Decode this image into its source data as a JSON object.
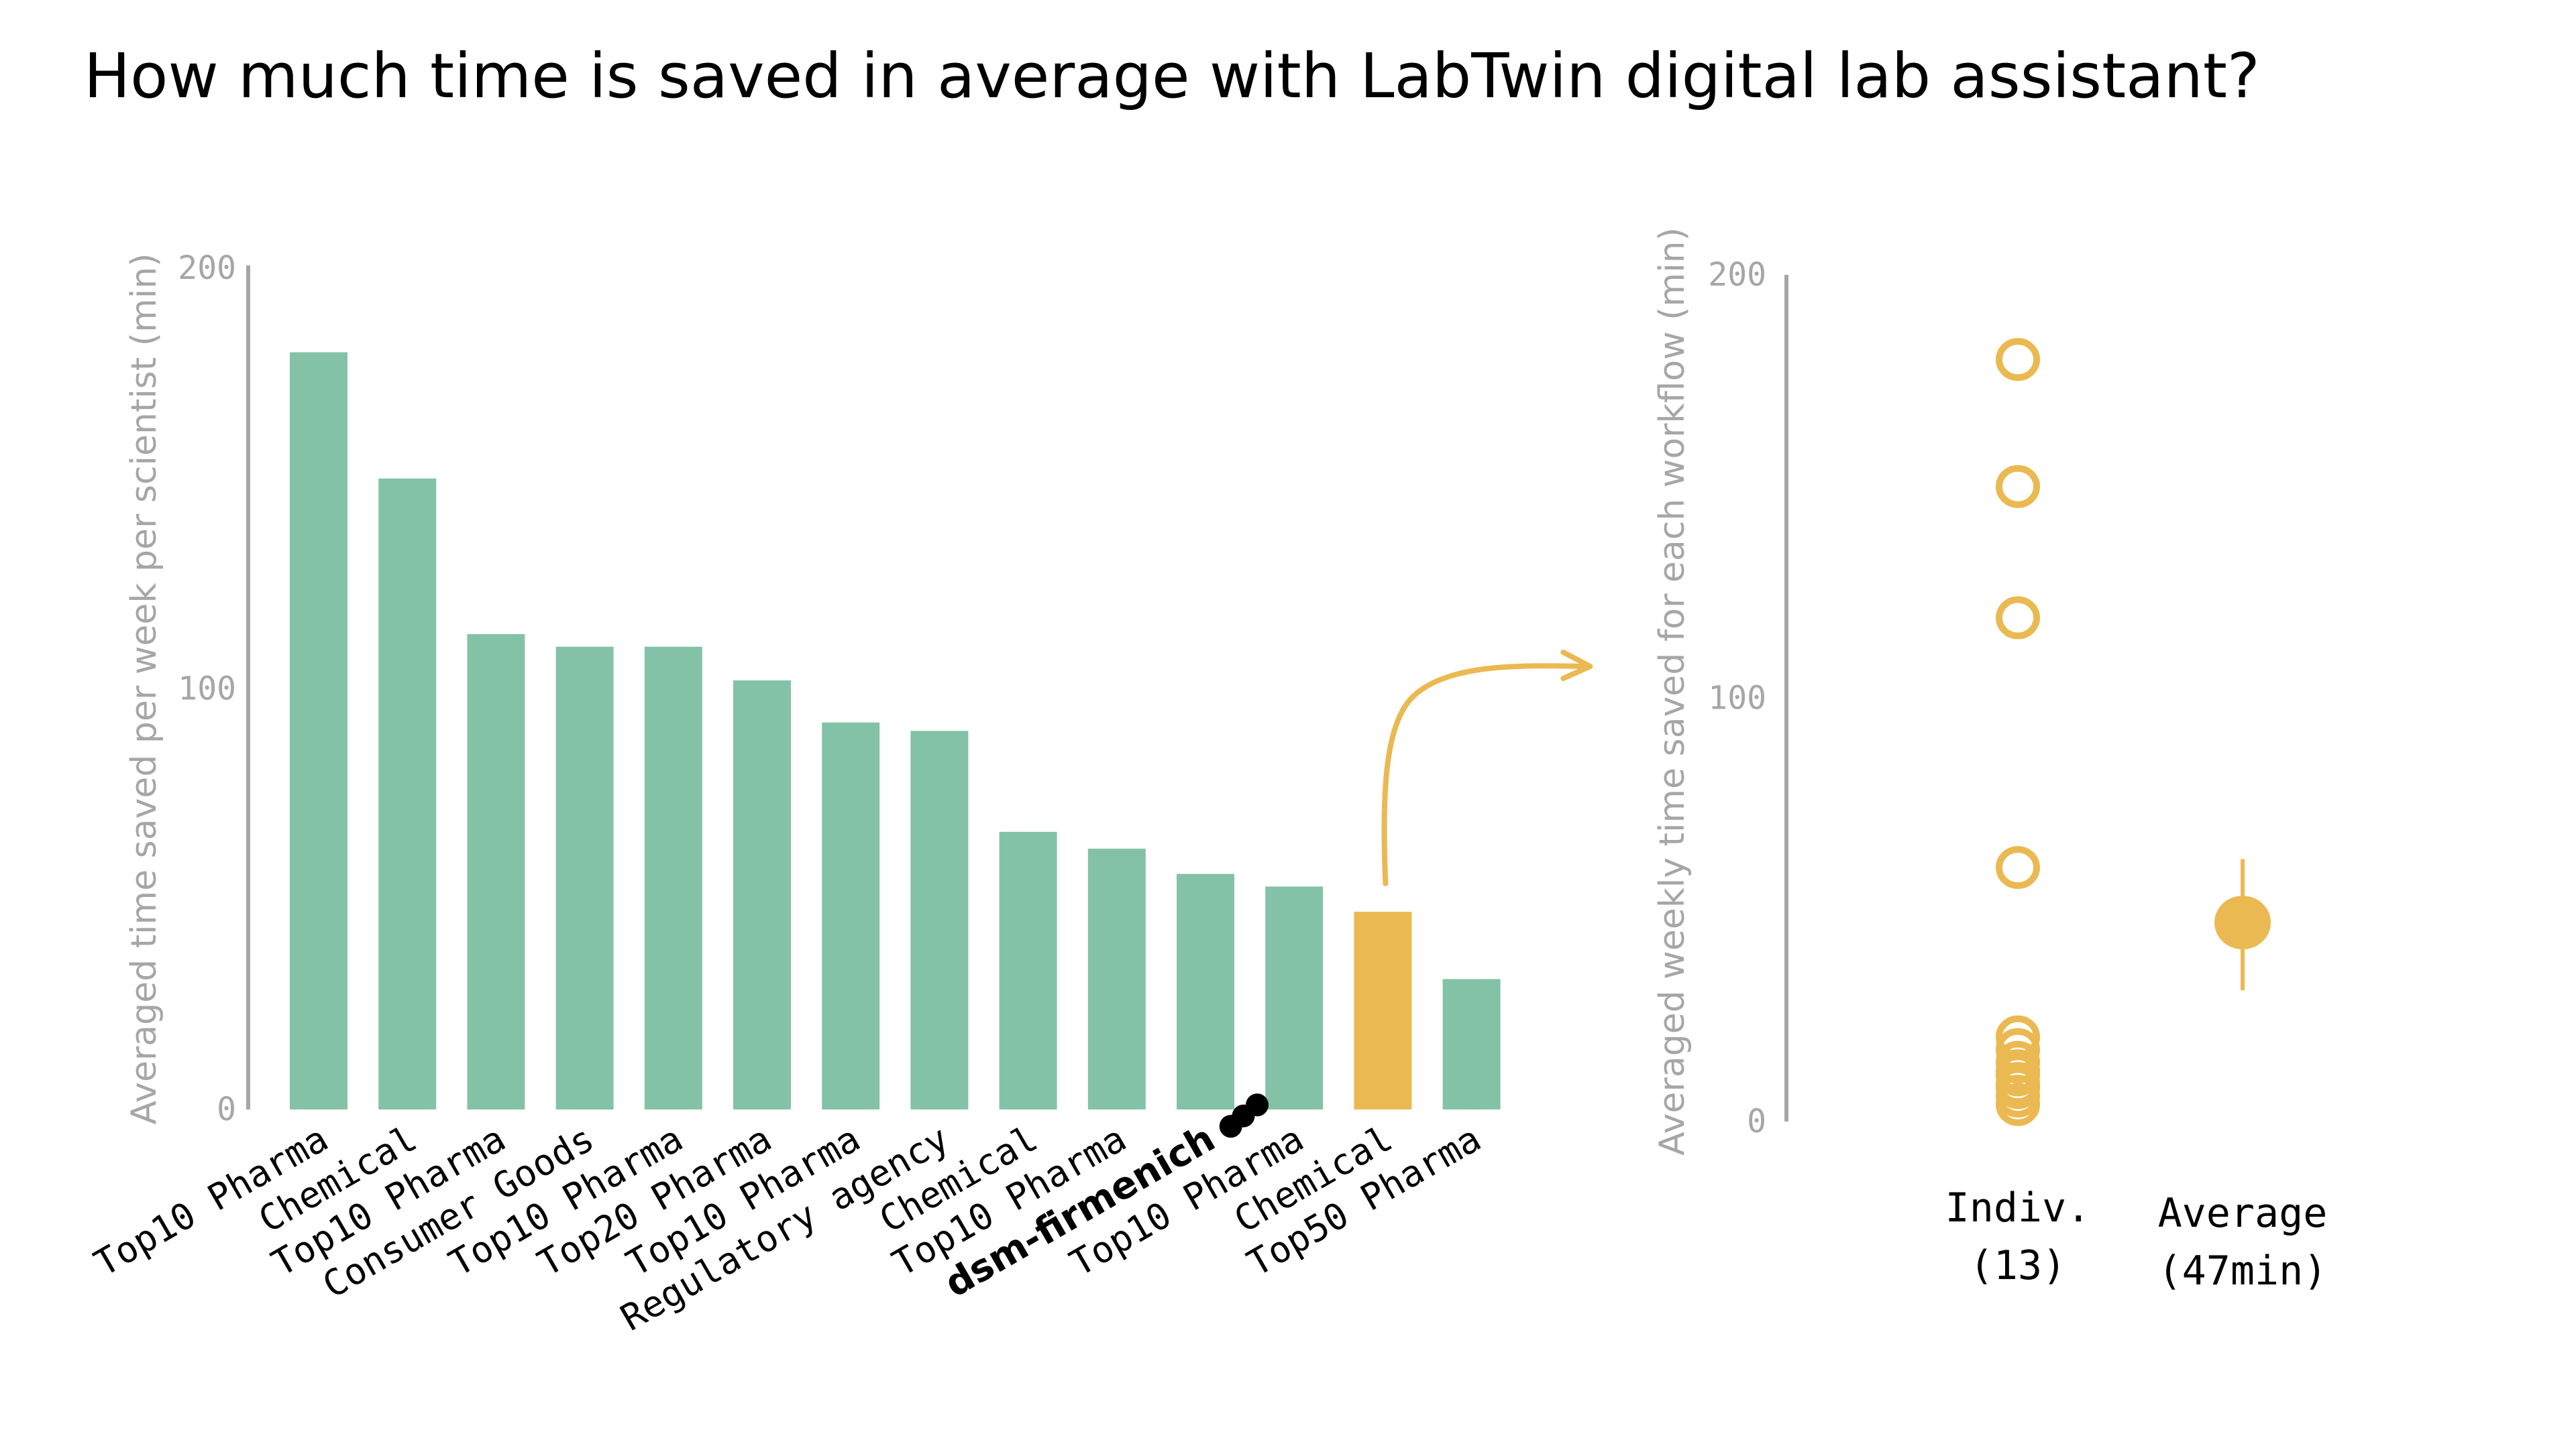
{
  "title": "How much time is saved in average with LabTwin digital lab assistant?",
  "colors": {
    "bar": "#84c2a8",
    "highlight": "#ebb951",
    "axis": "#a6a6a6",
    "text": "#000000"
  },
  "icons": {
    "dsm_logo": "three-dots-logo-icon",
    "arrow": "curved-arrow-icon"
  },
  "chart_data": [
    {
      "type": "bar",
      "title": "How much time is saved in average with LabTwin digital lab assistant?",
      "xlabel": "",
      "ylabel": "Averaged time saved per week per scientist (min)",
      "ylim": [
        0,
        200
      ],
      "yticks": [
        0,
        100,
        200
      ],
      "grid": false,
      "categories": [
        "Top10 Pharma",
        "Chemical",
        "Top10 Pharma",
        "Consumer Goods",
        "Top10 Pharma",
        "Top20 Pharma",
        "Top10 Pharma",
        "Regulatory agency",
        "Chemical",
        "Top10 Pharma",
        "dsm-firmenich",
        "Top10 Pharma",
        "Chemical",
        "Top50 Pharma"
      ],
      "values": [
        180,
        150,
        113,
        110,
        110,
        102,
        92,
        90,
        66,
        62,
        56,
        53,
        47,
        31
      ],
      "highlight_index": 12,
      "bold_index": 10,
      "annotation": "arrow from highlighted bar to summary chart"
    },
    {
      "type": "scatter",
      "xlabel": "",
      "ylabel": "Averaged weekly time saved for each workflow (min)",
      "ylim": [
        0,
        200
      ],
      "yticks": [
        0,
        100,
        200
      ],
      "grid": false,
      "groups": [
        {
          "label_line1": "Indiv.",
          "label_line2": "(13)"
        },
        {
          "label_line1": "Average",
          "label_line2": "(47min)"
        }
      ],
      "individual_values": [
        180,
        150,
        119,
        60,
        20,
        17,
        14,
        12,
        11,
        9,
        8,
        6,
        4
      ],
      "average": {
        "value": 47,
        "error_low": 31,
        "error_high": 62
      }
    }
  ]
}
